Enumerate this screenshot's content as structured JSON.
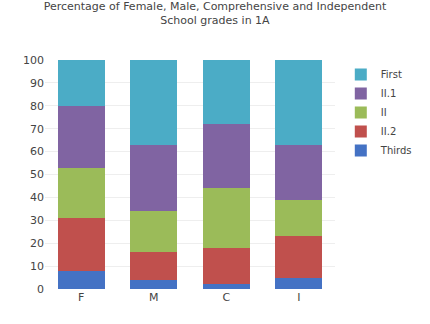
{
  "chart_data": {
    "type": "bar",
    "title": "Percentage of Female, Male, Comprehensive and Independent\nSchool grades in 1A",
    "categories": [
      "F",
      "M",
      "C",
      "I"
    ],
    "series": [
      {
        "name": "Thirds",
        "color": "#4472C4",
        "values": [
          8,
          4,
          2,
          5
        ]
      },
      {
        "name": "II.2",
        "color": "#C0504D",
        "values": [
          23,
          12,
          16,
          18
        ]
      },
      {
        "name": "II",
        "color": "#9BBB59",
        "values": [
          22,
          18,
          26,
          16
        ]
      },
      {
        "name": "II.1",
        "color": "#8064A2",
        "values": [
          27,
          29,
          28,
          24
        ]
      },
      {
        "name": "First",
        "color": "#4BACC6",
        "values": [
          20,
          37,
          28,
          37
        ]
      }
    ],
    "stacked": true,
    "ylim": [
      0,
      100
    ],
    "yticks": [
      0,
      10,
      20,
      30,
      40,
      50,
      60,
      70,
      80,
      90,
      100
    ],
    "grid": true,
    "legend": "right"
  }
}
